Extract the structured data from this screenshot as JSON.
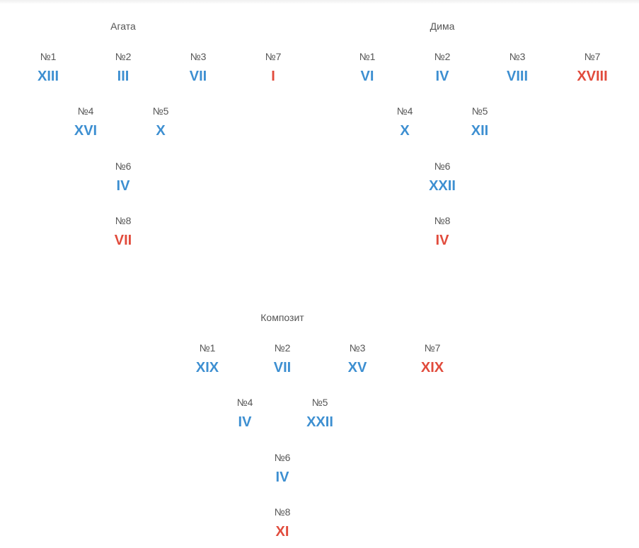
{
  "colors": {
    "value_default": "#3d8fd1",
    "value_highlight": "#e14b3c",
    "label": "#555555"
  },
  "agata": {
    "title": "Агата",
    "cells": [
      {
        "label": "№1",
        "value": "XIII",
        "highlight": false
      },
      {
        "label": "№2",
        "value": "III",
        "highlight": false
      },
      {
        "label": "№3",
        "value": "VII",
        "highlight": false
      },
      {
        "label": "№7",
        "value": "I",
        "highlight": true
      },
      {
        "label": "№4",
        "value": "XVI",
        "highlight": false
      },
      {
        "label": "№5",
        "value": "X",
        "highlight": false
      },
      {
        "label": "№6",
        "value": "IV",
        "highlight": false
      },
      {
        "label": "№8",
        "value": "VII",
        "highlight": true
      }
    ]
  },
  "dima": {
    "title": "Дима",
    "cells": [
      {
        "label": "№1",
        "value": "VI",
        "highlight": false
      },
      {
        "label": "№2",
        "value": "IV",
        "highlight": false
      },
      {
        "label": "№3",
        "value": "VIII",
        "highlight": false
      },
      {
        "label": "№7",
        "value": "XVIII",
        "highlight": true
      },
      {
        "label": "№4",
        "value": "X",
        "highlight": false
      },
      {
        "label": "№5",
        "value": "XII",
        "highlight": false
      },
      {
        "label": "№6",
        "value": "XXII",
        "highlight": false
      },
      {
        "label": "№8",
        "value": "IV",
        "highlight": true
      }
    ]
  },
  "composite": {
    "title": "Композит",
    "cells": [
      {
        "label": "№1",
        "value": "XIX",
        "highlight": false
      },
      {
        "label": "№2",
        "value": "VII",
        "highlight": false
      },
      {
        "label": "№3",
        "value": "XV",
        "highlight": false
      },
      {
        "label": "№7",
        "value": "XIX",
        "highlight": true
      },
      {
        "label": "№4",
        "value": "IV",
        "highlight": false
      },
      {
        "label": "№5",
        "value": "XXII",
        "highlight": false
      },
      {
        "label": "№6",
        "value": "IV",
        "highlight": false
      },
      {
        "label": "№8",
        "value": "XI",
        "highlight": true
      }
    ]
  }
}
